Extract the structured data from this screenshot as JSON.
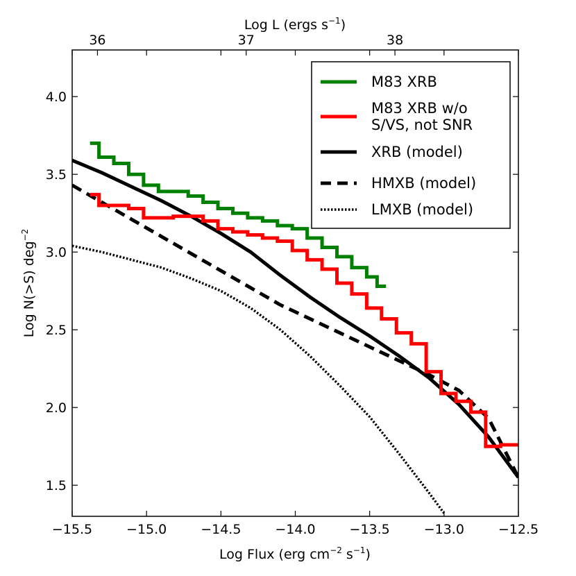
{
  "chart_data": {
    "type": "line",
    "xlabel": "Log Flux (erg cm",
    "xlabel_sup": "−2",
    "xlabel_tail": " s",
    "xlabel_sup2": "−1",
    "xlabel_end": ")",
    "ylabel": "Log N(>S) deg",
    "ylabel_sup": "−2",
    "top_xlabel": "Log L (ergs s",
    "top_xlabel_sup": "−1",
    "top_xlabel_end": ")",
    "xlim": [
      -15.5,
      -12.5
    ],
    "ylim": [
      1.3,
      4.3
    ],
    "x_ticks": [
      -15.5,
      -15.0,
      -14.5,
      -14.0,
      -13.5,
      -13.0,
      -12.5
    ],
    "x_tick_labels": [
      "−15.5",
      "−15.0",
      "−14.5",
      "−14.0",
      "−13.5",
      "−13.0",
      "−12.5"
    ],
    "y_ticks": [
      1.5,
      2.0,
      2.5,
      3.0,
      3.5,
      4.0
    ],
    "y_tick_labels": [
      "1.5",
      "2.0",
      "2.5",
      "3.0",
      "3.5",
      "4.0"
    ],
    "top_ticks": [
      -15.33,
      -14.33,
      -13.33
    ],
    "top_tick_labels": [
      "36",
      "37",
      "38"
    ],
    "legend_position": "top-right",
    "series": [
      {
        "name": "M83 XRB",
        "color": "#008000",
        "style": "step",
        "x": [
          -15.38,
          -15.32,
          -15.22,
          -15.12,
          -15.02,
          -14.92,
          -14.82,
          -14.72,
          -14.62,
          -14.52,
          -14.42,
          -14.32,
          -14.22,
          -14.12,
          -14.02,
          -13.92,
          -13.82,
          -13.72,
          -13.62,
          -13.52,
          -13.45
        ],
        "y": [
          3.7,
          3.61,
          3.57,
          3.5,
          3.43,
          3.39,
          3.39,
          3.36,
          3.32,
          3.28,
          3.25,
          3.22,
          3.2,
          3.17,
          3.15,
          3.09,
          3.03,
          2.97,
          2.9,
          2.84,
          2.78
        ]
      },
      {
        "name": "M83 XRB w/o S/VS, not SNR",
        "color": "#ff0000",
        "style": "step",
        "x": [
          -15.38,
          -15.32,
          -15.22,
          -15.12,
          -15.02,
          -14.92,
          -14.82,
          -14.72,
          -14.62,
          -14.52,
          -14.42,
          -14.32,
          -14.22,
          -14.12,
          -14.02,
          -13.92,
          -13.82,
          -13.72,
          -13.62,
          -13.52,
          -13.42,
          -13.32,
          -13.22,
          -13.12,
          -13.02,
          -12.92,
          -12.82,
          -12.72,
          -12.62,
          -12.5
        ],
        "y": [
          3.37,
          3.3,
          3.3,
          3.28,
          3.22,
          3.22,
          3.23,
          3.23,
          3.2,
          3.15,
          3.13,
          3.11,
          3.09,
          3.07,
          3.01,
          2.95,
          2.89,
          2.8,
          2.73,
          2.64,
          2.57,
          2.48,
          2.41,
          2.23,
          2.09,
          2.04,
          1.97,
          1.75,
          1.76,
          1.77
        ]
      },
      {
        "name": "XRB (model)",
        "color": "#000000",
        "style": "solid",
        "x": [
          -15.5,
          -15.3,
          -15.1,
          -14.9,
          -14.7,
          -14.5,
          -14.3,
          -14.1,
          -13.9,
          -13.7,
          -13.5,
          -13.3,
          -13.1,
          -12.9,
          -12.7,
          -12.5
        ],
        "y": [
          3.59,
          3.51,
          3.42,
          3.33,
          3.23,
          3.12,
          3.0,
          2.85,
          2.71,
          2.58,
          2.46,
          2.33,
          2.19,
          2.02,
          1.81,
          1.55
        ]
      },
      {
        "name": "HMXB (model)",
        "color": "#000000",
        "style": "dashed",
        "x": [
          -15.5,
          -15.3,
          -15.1,
          -14.9,
          -14.7,
          -14.5,
          -14.3,
          -14.1,
          -13.9,
          -13.7,
          -13.5,
          -13.3,
          -13.1,
          -12.9,
          -12.7,
          -12.5
        ],
        "y": [
          3.43,
          3.32,
          3.21,
          3.1,
          2.99,
          2.88,
          2.77,
          2.66,
          2.57,
          2.48,
          2.39,
          2.3,
          2.21,
          2.11,
          1.93,
          1.55
        ]
      },
      {
        "name": "LMXB (model)",
        "color": "#000000",
        "style": "dotted",
        "x": [
          -15.5,
          -15.3,
          -15.1,
          -14.9,
          -14.7,
          -14.5,
          -14.3,
          -14.1,
          -13.9,
          -13.7,
          -13.5,
          -13.3,
          -13.1,
          -13.0
        ],
        "y": [
          3.04,
          3.0,
          2.95,
          2.9,
          2.83,
          2.75,
          2.64,
          2.5,
          2.33,
          2.14,
          1.94,
          1.7,
          1.45,
          1.32
        ]
      }
    ],
    "legend": [
      {
        "label_lines": [
          "M83 XRB"
        ],
        "color": "#008000",
        "style": "solid"
      },
      {
        "label_lines": [
          "M83 XRB w/o",
          "S/VS, not SNR"
        ],
        "color": "#ff0000",
        "style": "solid"
      },
      {
        "label_lines": [
          "XRB (model)"
        ],
        "color": "#000000",
        "style": "solid"
      },
      {
        "label_lines": [
          "HMXB (model)"
        ],
        "color": "#000000",
        "style": "dashed"
      },
      {
        "label_lines": [
          "LMXB (model)"
        ],
        "color": "#000000",
        "style": "dotted"
      }
    ]
  }
}
